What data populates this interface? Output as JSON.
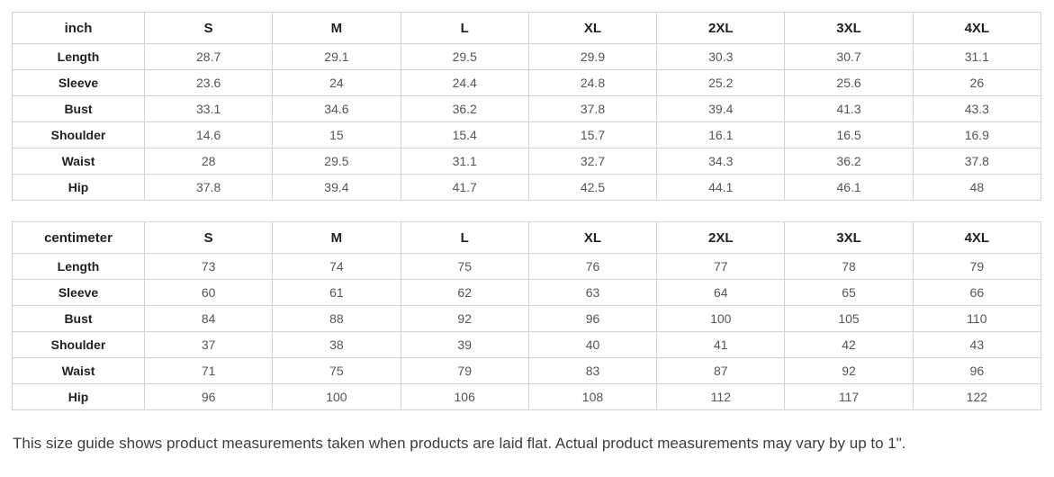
{
  "sizes": [
    "S",
    "M",
    "L",
    "XL",
    "2XL",
    "3XL",
    "4XL"
  ],
  "tables": [
    {
      "unit": "inch",
      "rows": [
        {
          "label": "Length",
          "values": [
            "28.7",
            "29.1",
            "29.5",
            "29.9",
            "30.3",
            "30.7",
            "31.1"
          ]
        },
        {
          "label": "Sleeve",
          "values": [
            "23.6",
            "24",
            "24.4",
            "24.8",
            "25.2",
            "25.6",
            "26"
          ]
        },
        {
          "label": "Bust",
          "values": [
            "33.1",
            "34.6",
            "36.2",
            "37.8",
            "39.4",
            "41.3",
            "43.3"
          ]
        },
        {
          "label": "Shoulder",
          "values": [
            "14.6",
            "15",
            "15.4",
            "15.7",
            "16.1",
            "16.5",
            "16.9"
          ]
        },
        {
          "label": "Waist",
          "values": [
            "28",
            "29.5",
            "31.1",
            "32.7",
            "34.3",
            "36.2",
            "37.8"
          ]
        },
        {
          "label": "Hip",
          "values": [
            "37.8",
            "39.4",
            "41.7",
            "42.5",
            "44.1",
            "46.1",
            "48"
          ]
        }
      ]
    },
    {
      "unit": "centimeter",
      "rows": [
        {
          "label": "Length",
          "values": [
            "73",
            "74",
            "75",
            "76",
            "77",
            "78",
            "79"
          ]
        },
        {
          "label": "Sleeve",
          "values": [
            "60",
            "61",
            "62",
            "63",
            "64",
            "65",
            "66"
          ]
        },
        {
          "label": "Bust",
          "values": [
            "84",
            "88",
            "92",
            "96",
            "100",
            "105",
            "110"
          ]
        },
        {
          "label": "Shoulder",
          "values": [
            "37",
            "38",
            "39",
            "40",
            "41",
            "42",
            "43"
          ]
        },
        {
          "label": "Waist",
          "values": [
            "71",
            "75",
            "79",
            "83",
            "87",
            "92",
            "96"
          ]
        },
        {
          "label": "Hip",
          "values": [
            "96",
            "100",
            "106",
            "108",
            "112",
            "117",
            "122"
          ]
        }
      ]
    }
  ],
  "note": "This size guide shows product measurements taken when products are laid flat. Actual product measurements may vary by up to 1\".",
  "colors": {
    "background": "#ffffff",
    "border": "#d2d2d2",
    "header_text": "#222222",
    "value_text": "#555555",
    "note_text": "#3d3d3d"
  }
}
